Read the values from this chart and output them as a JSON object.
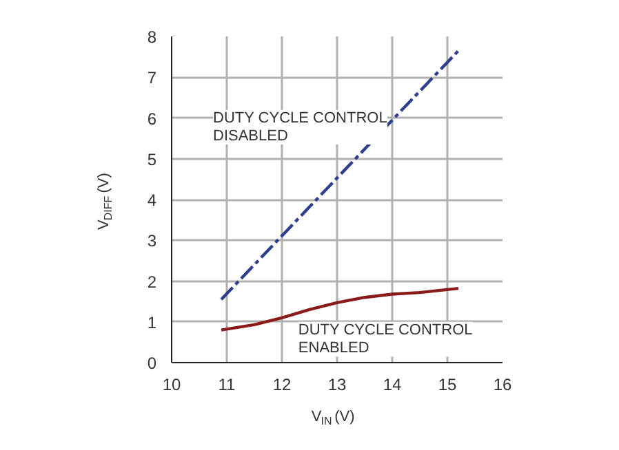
{
  "chart_data": {
    "type": "line",
    "xlabel": "V$_{IN}$(V)",
    "ylabel": "V$_{DIFF}$(V)",
    "xlim": [
      10,
      16
    ],
    "ylim": [
      0,
      8
    ],
    "xticks": [
      10,
      11,
      12,
      13,
      14,
      15,
      16
    ],
    "yticks": [
      0,
      1,
      2,
      3,
      4,
      5,
      6,
      7,
      8
    ],
    "grid": true,
    "series": [
      {
        "color": "#2e3f8f",
        "line_style": "dashdot",
        "x": [
          10.9,
          15.2
        ],
        "values": [
          1.55,
          7.65
        ]
      },
      {
        "color": "#8b1a1a",
        "line_style": "solid",
        "x": [
          10.9,
          11.5,
          12,
          12.5,
          13,
          13.5,
          14,
          14.5,
          15.2
        ],
        "values": [
          0.8,
          0.93,
          1.1,
          1.3,
          1.47,
          1.6,
          1.68,
          1.72,
          1.82
        ]
      }
    ],
    "annotations": [
      "DUTY CYCLE CONTROL\nDISABLED",
      "DUTY CYCLE CONTROL\nENABLED"
    ]
  }
}
